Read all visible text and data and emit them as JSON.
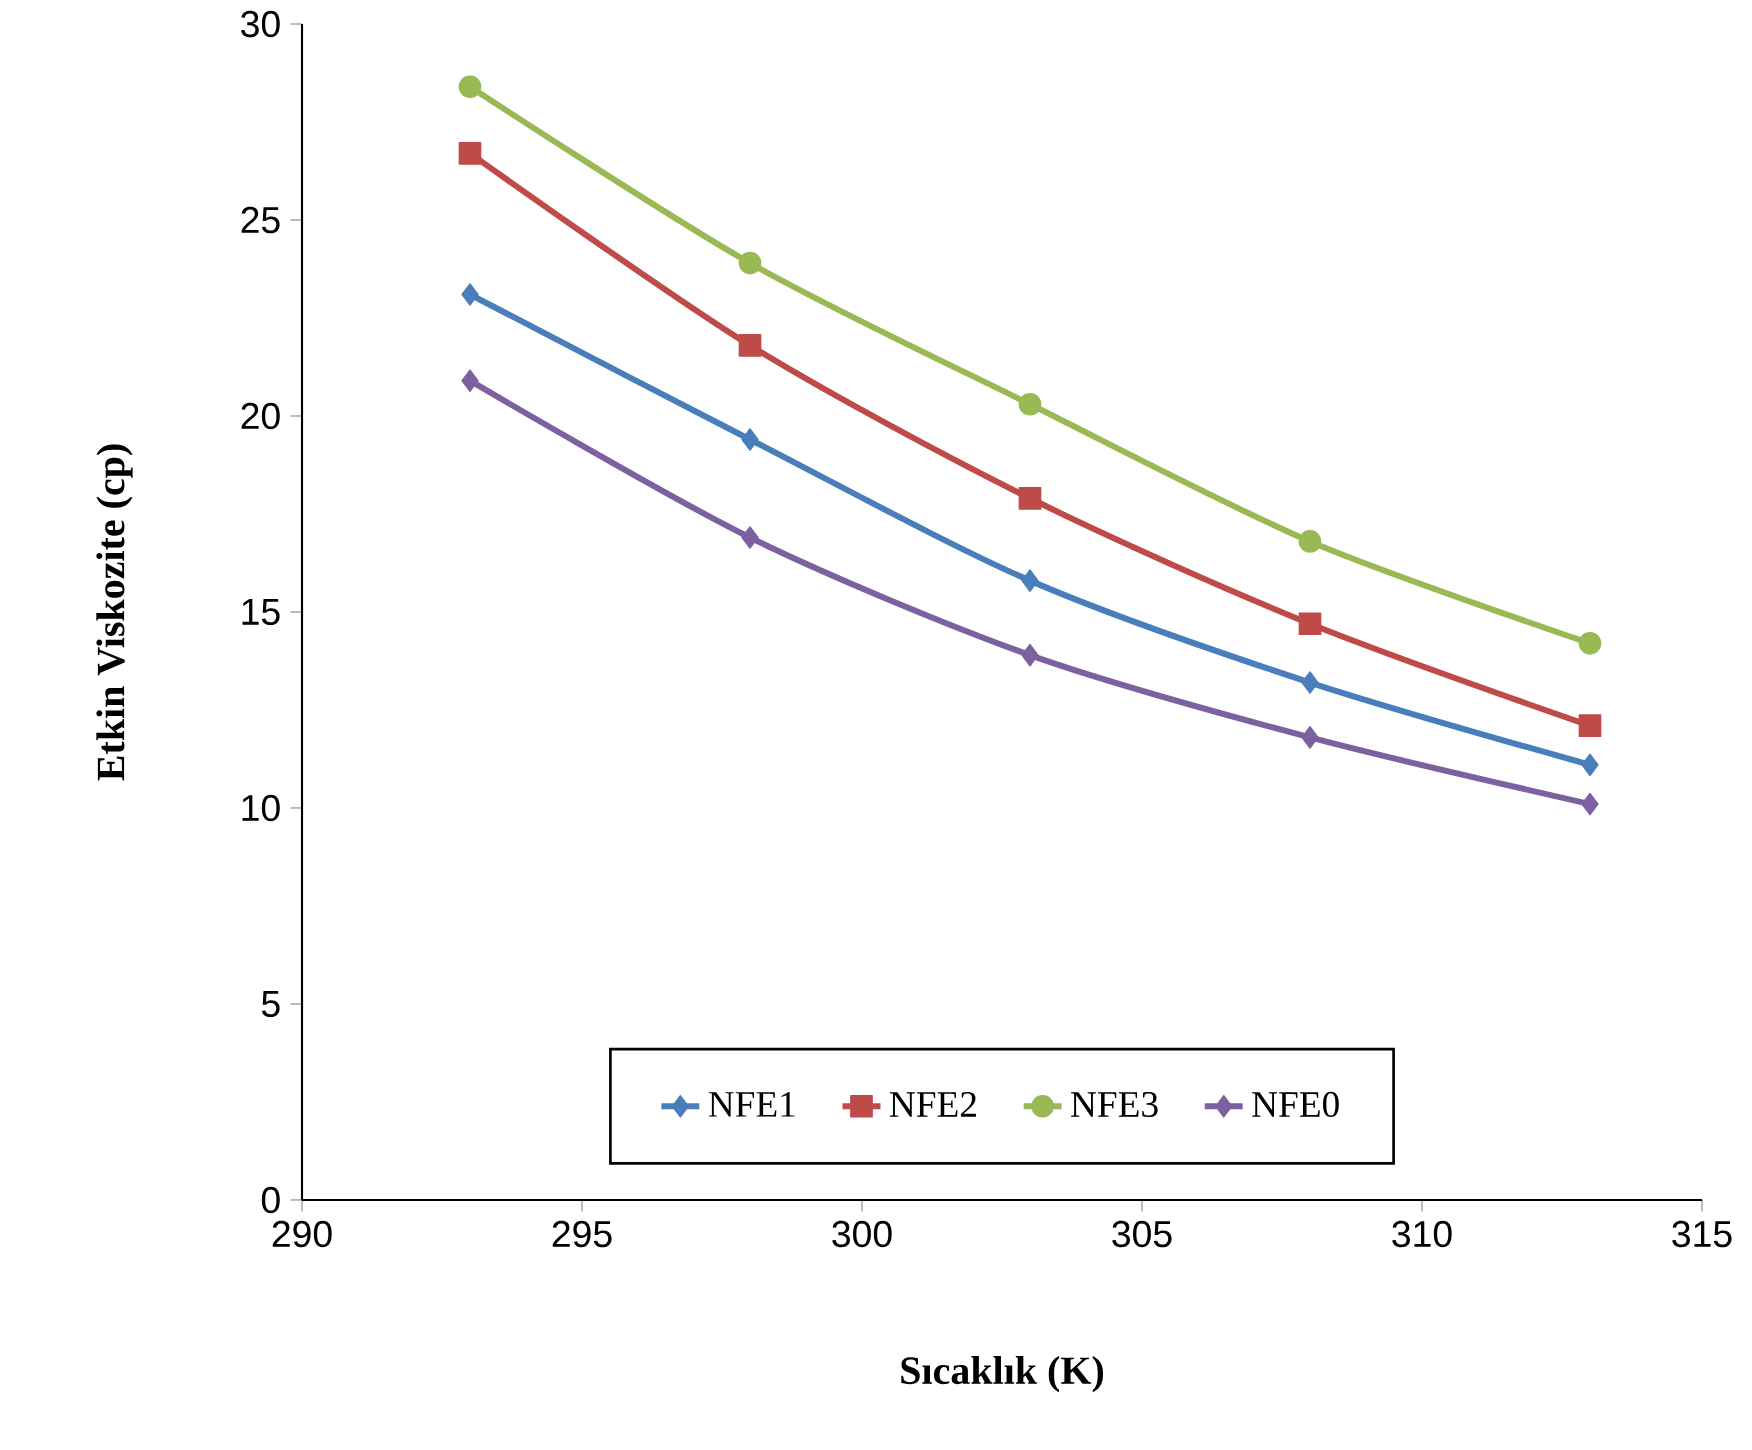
{
  "chart_data": {
    "type": "line",
    "xlabel": "Sıcaklık (K)",
    "ylabel": "Etkin Viskozite (cp)",
    "x": [
      293,
      298,
      303,
      308,
      313
    ],
    "series": [
      {
        "name": "NFE1",
        "color": "#4a7ebb",
        "marker": "diamond",
        "values": [
          23.1,
          19.4,
          15.8,
          13.2,
          11.1
        ]
      },
      {
        "name": "NFE2",
        "color": "#be4b48",
        "marker": "square",
        "values": [
          26.7,
          21.8,
          17.9,
          14.7,
          12.1
        ]
      },
      {
        "name": "NFE3",
        "color": "#98b954",
        "marker": "circle",
        "values": [
          28.4,
          23.9,
          20.3,
          16.8,
          14.2
        ]
      },
      {
        "name": "NFE0",
        "color": "#7d60a0",
        "marker": "diamond",
        "values": [
          20.9,
          16.9,
          13.9,
          11.8,
          10.1
        ]
      }
    ],
    "xlim": [
      290,
      315
    ],
    "xticks": [
      290,
      295,
      300,
      305,
      310,
      315
    ],
    "ylim": [
      0,
      30
    ],
    "yticks": [
      0,
      5,
      10,
      15,
      20,
      25,
      30
    ],
    "legend": "bottom",
    "grid": false,
    "line_style": "solid"
  }
}
